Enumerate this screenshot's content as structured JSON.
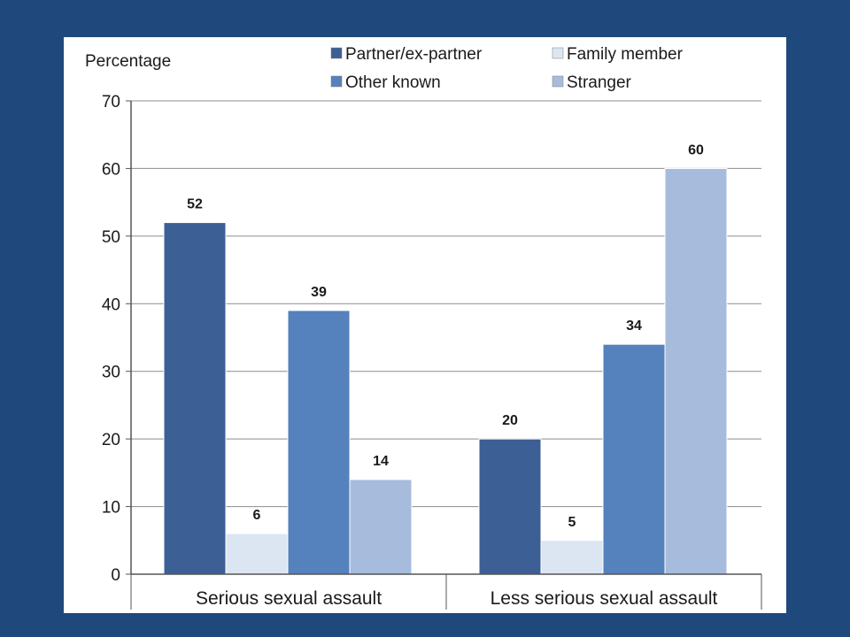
{
  "chart_data": {
    "type": "bar",
    "ylabel": "Percentage",
    "xlabel": "",
    "ylim": [
      0,
      70
    ],
    "yticks": [
      0,
      10,
      20,
      30,
      40,
      50,
      60,
      70
    ],
    "grid": true,
    "legend_position": "top",
    "categories": [
      "Serious sexual assault",
      "Less serious sexual assault"
    ],
    "series": [
      {
        "name": "Partner/ex-partner",
        "color": "#3c5f95",
        "values": [
          52,
          20
        ]
      },
      {
        "name": "Family member",
        "color": "#dce6f2",
        "values": [
          6,
          5
        ]
      },
      {
        "name": "Other known",
        "color": "#5581bd",
        "values": [
          39,
          34
        ]
      },
      {
        "name": "Stranger",
        "color": "#a7bcdc",
        "values": [
          14,
          60
        ]
      }
    ]
  }
}
